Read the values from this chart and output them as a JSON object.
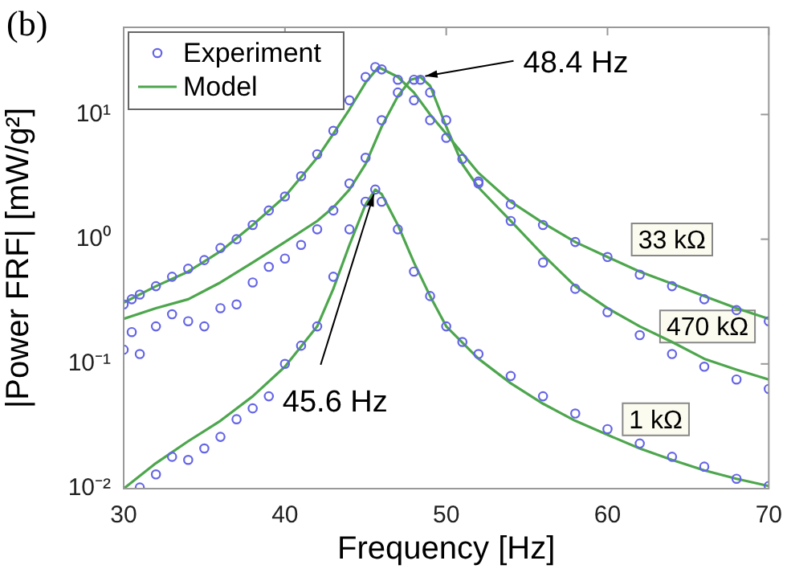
{
  "chart_data": {
    "type": "scatter",
    "title": "(b)",
    "xlabel": "Frequency [Hz]",
    "ylabel": "|Power FRF| [mW/g²]",
    "xlim": [
      30,
      70
    ],
    "xticks": [
      30,
      40,
      50,
      60,
      70
    ],
    "ylim": [
      0.01,
      50
    ],
    "yticks": [
      {
        "value": 0.01,
        "label": "10⁻²"
      },
      {
        "value": 0.1,
        "label": "10⁻¹"
      },
      {
        "value": 1,
        "label": "10⁰"
      },
      {
        "value": 10,
        "label": "10¹"
      }
    ],
    "log": "y",
    "grid": false,
    "legend": "top left",
    "series": [
      {
        "name": "Experiment",
        "type": "scatter",
        "marker": "circle",
        "color": "#6464e6",
        "x": [
          30,
          30.5,
          31,
          32,
          33,
          34,
          35,
          36,
          37,
          38,
          39,
          40,
          41,
          42,
          43,
          44,
          45,
          45.6,
          46,
          47,
          48,
          49,
          50,
          52,
          54,
          56,
          58,
          60,
          62,
          64,
          66,
          68,
          70
        ],
        "values": [
          0.3,
          0.33,
          0.36,
          0.42,
          0.5,
          0.58,
          0.68,
          0.85,
          1.0,
          1.3,
          1.7,
          2.2,
          3.2,
          4.8,
          7.4,
          13,
          20,
          24,
          23,
          19,
          13,
          9,
          6.5,
          2.9,
          1.9,
          1.3,
          0.95,
          0.72,
          0.52,
          0.42,
          0.33,
          0.27,
          0.22
        ]
      },
      {
        "type": "scatter",
        "marker": "circle",
        "color": "#6464e6",
        "x": [
          30,
          30.5,
          31,
          32,
          33,
          34,
          35,
          36,
          37,
          38,
          39,
          40,
          41,
          42,
          43,
          44,
          45,
          46,
          47,
          48,
          48.4,
          49,
          50,
          51,
          52,
          54,
          56,
          58,
          60,
          62,
          64,
          66,
          68,
          70
        ],
        "values": [
          0.13,
          0.18,
          0.12,
          0.2,
          0.25,
          0.22,
          0.2,
          0.28,
          0.3,
          0.45,
          0.6,
          0.7,
          0.9,
          1.2,
          1.7,
          2.8,
          4.5,
          9,
          15,
          19,
          19,
          15,
          9,
          4.4,
          2.8,
          1.4,
          0.65,
          0.4,
          0.26,
          0.17,
          0.12,
          0.095,
          0.075,
          0.063
        ]
      },
      {
        "type": "scatter",
        "marker": "circle",
        "color": "#6464e6",
        "x": [
          31,
          32,
          33,
          34,
          35,
          36,
          37,
          38,
          39,
          40,
          41,
          42,
          43,
          44,
          45,
          45.6,
          46,
          47,
          48,
          49,
          50,
          51,
          52,
          54,
          56,
          58,
          60,
          62,
          64,
          66,
          68,
          70
        ],
        "values": [
          0.0102,
          0.013,
          0.018,
          0.017,
          0.021,
          0.026,
          0.036,
          0.044,
          0.055,
          0.1,
          0.14,
          0.2,
          0.5,
          1.2,
          2,
          2.5,
          2,
          1.2,
          0.55,
          0.35,
          0.2,
          0.15,
          0.12,
          0.08,
          0.055,
          0.04,
          0.03,
          0.023,
          0.018,
          0.015,
          0.012,
          0.0105
        ]
      },
      {
        "name": "Model",
        "type": "line",
        "marker": "none",
        "color": "#4da64d",
        "x": [
          30,
          32,
          34,
          36,
          38,
          40,
          42,
          43,
          44,
          45,
          45.8,
          47,
          48,
          49,
          50,
          52,
          54,
          56,
          58,
          60,
          62,
          64,
          66,
          68,
          70
        ],
        "values": [
          0.31,
          0.42,
          0.55,
          0.8,
          1.3,
          2.2,
          4.5,
          7,
          11,
          18,
          24,
          20,
          15,
          10,
          7,
          3.4,
          2,
          1.35,
          0.95,
          0.72,
          0.55,
          0.44,
          0.35,
          0.28,
          0.23
        ]
      },
      {
        "type": "line",
        "marker": "none",
        "color": "#4da64d",
        "x": [
          30,
          32,
          34,
          36,
          38,
          40,
          42,
          43,
          44,
          45,
          46,
          47,
          47.8,
          48.4,
          49,
          50,
          51,
          52,
          54,
          56,
          58,
          60,
          62,
          64,
          66,
          68,
          70
        ],
        "values": [
          0.23,
          0.28,
          0.33,
          0.45,
          0.65,
          0.95,
          1.4,
          1.8,
          2.5,
          4,
          8,
          14,
          19,
          20,
          17,
          8,
          4,
          2.6,
          1.4,
          0.75,
          0.42,
          0.28,
          0.2,
          0.15,
          0.11,
          0.09,
          0.075
        ]
      },
      {
        "type": "line",
        "marker": "none",
        "color": "#4da64d",
        "x": [
          30,
          32,
          34,
          36,
          38,
          40,
          42,
          43,
          44,
          45,
          45.6,
          46,
          47,
          48,
          49,
          50,
          52,
          54,
          56,
          58,
          60,
          62,
          64,
          66,
          68,
          70
        ],
        "values": [
          0.01,
          0.016,
          0.024,
          0.035,
          0.055,
          0.095,
          0.2,
          0.4,
          0.9,
          1.9,
          2.5,
          2.3,
          1.3,
          0.65,
          0.35,
          0.2,
          0.11,
          0.07,
          0.048,
          0.035,
          0.027,
          0.021,
          0.017,
          0.014,
          0.012,
          0.0105
        ]
      }
    ],
    "annotations": [
      {
        "text": "33 kΩ",
        "x": 64,
        "y": 0.42
      },
      {
        "text": "470 kΩ",
        "x": 66,
        "y": 0.095
      },
      {
        "text": "1 kΩ",
        "x": 62,
        "y": 0.023
      },
      {
        "text": "48.4 Hz",
        "x": 48.4,
        "y": 20
      },
      {
        "text": "45.6 Hz",
        "x": 45.6,
        "y": 2.5
      }
    ]
  }
}
